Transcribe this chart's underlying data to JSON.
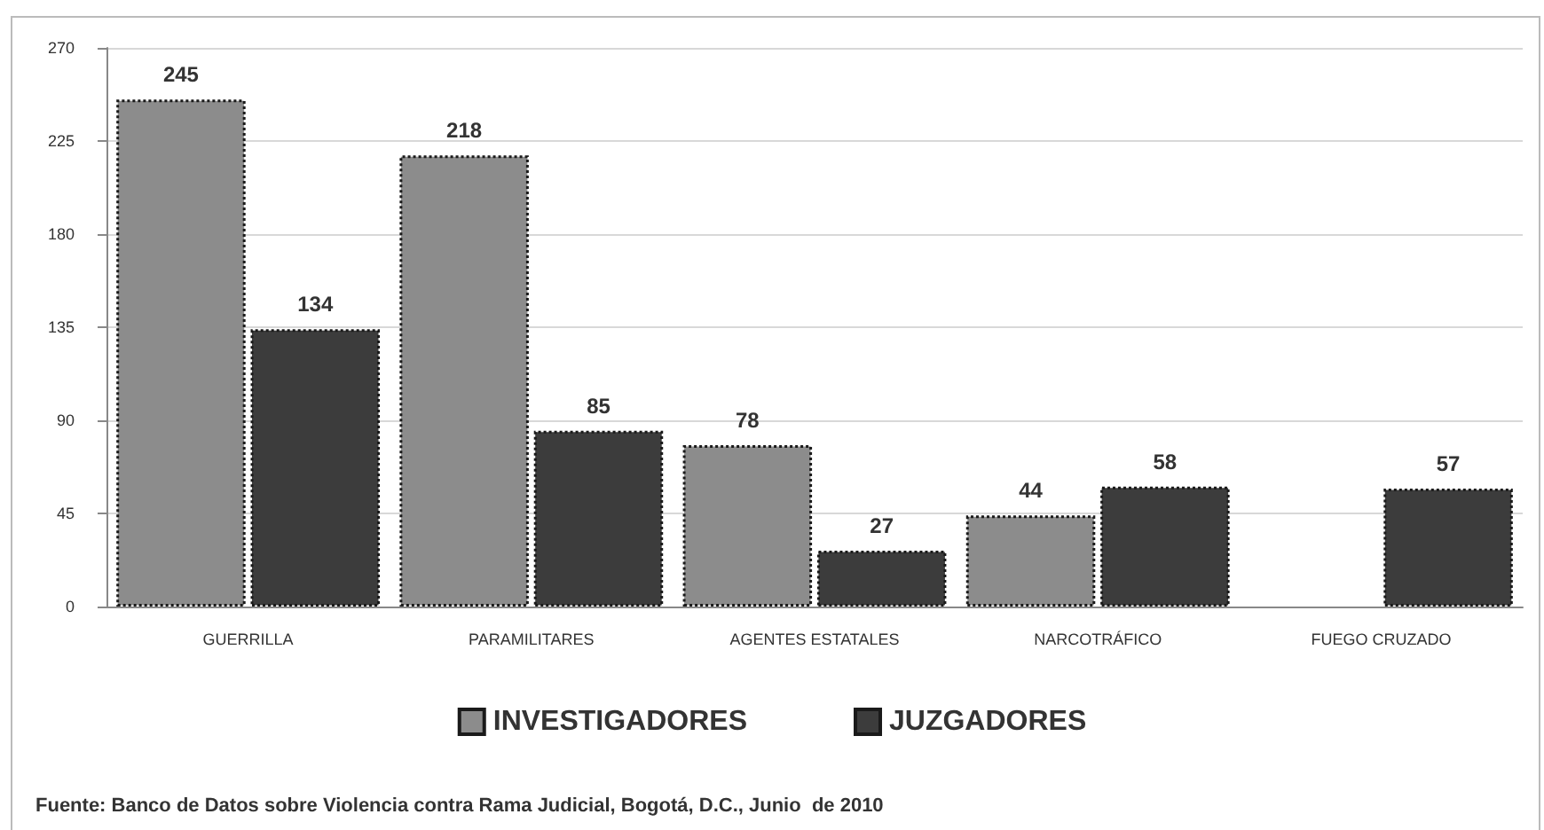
{
  "chart_data": {
    "type": "bar",
    "categories": [
      "GUERRILLA",
      "PARAMILITARES",
      "AGENTES ESTATALES",
      "NARCOTRÁFICO",
      "FUEGO CRUZADO"
    ],
    "series": [
      {
        "name": "INVESTIGADORES",
        "color": "#8c8c8c",
        "values": [
          245,
          218,
          78,
          44,
          null
        ]
      },
      {
        "name": "JUZGADORES",
        "color": "#3c3c3c",
        "values": [
          134,
          85,
          27,
          58,
          57
        ]
      }
    ],
    "ylim": [
      0,
      270
    ],
    "yticks": [
      0,
      45,
      90,
      135,
      180,
      225,
      270
    ],
    "grid": "y",
    "legend": "bottom",
    "data_labels": true,
    "annotations": [
      "Fuente: Banco de Datos sobre Violencia contra Rama Judicial, Bogotá, D.C., Junio  de 2010"
    ]
  }
}
